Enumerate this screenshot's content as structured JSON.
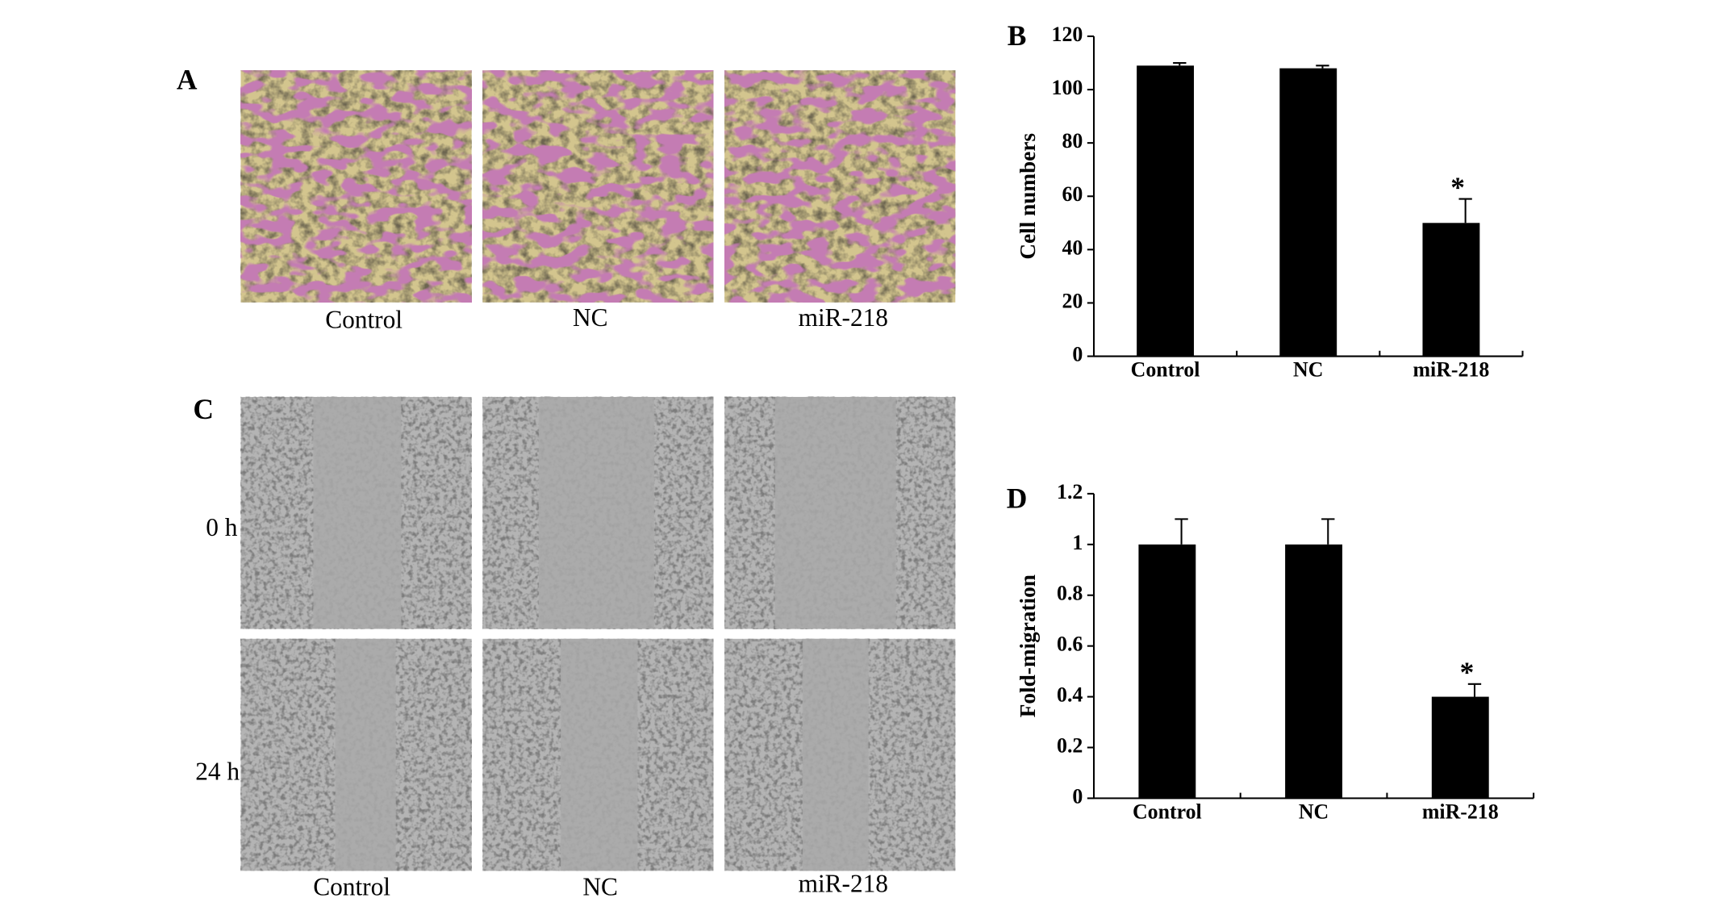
{
  "figure": {
    "panel_labels": [
      "A",
      "B",
      "C",
      "D"
    ],
    "panel_a_captions": [
      "Control",
      "NC",
      "miR-218"
    ],
    "panel_c_captions": [
      "Control",
      "NC",
      "miR-218"
    ],
    "panel_c_rows": [
      "0 h",
      "24 h"
    ]
  },
  "chart_data": [
    {
      "type": "bar",
      "ylabel": "Cell numbers",
      "categories": [
        "Control",
        "NC",
        "miR-218"
      ],
      "values": [
        109,
        108,
        50
      ],
      "errors": [
        1,
        1,
        9
      ],
      "significance": [
        null,
        null,
        "*"
      ],
      "color": "#000000",
      "ylim": [
        0,
        120
      ],
      "yticks": [
        0,
        20,
        40,
        60,
        80,
        100,
        120
      ]
    },
    {
      "type": "bar",
      "ylabel": "Fold-migration",
      "categories": [
        "Control",
        "NC",
        "miR-218"
      ],
      "values": [
        1,
        1,
        0.4
      ],
      "errors": [
        0.1,
        0.1,
        0.05
      ],
      "significance": [
        null,
        null,
        "*"
      ],
      "color": "#000000",
      "ylim": [
        0,
        1.2
      ],
      "yticks": [
        0,
        0.2,
        0.4,
        0.6,
        0.8,
        1,
        1.2
      ]
    }
  ]
}
